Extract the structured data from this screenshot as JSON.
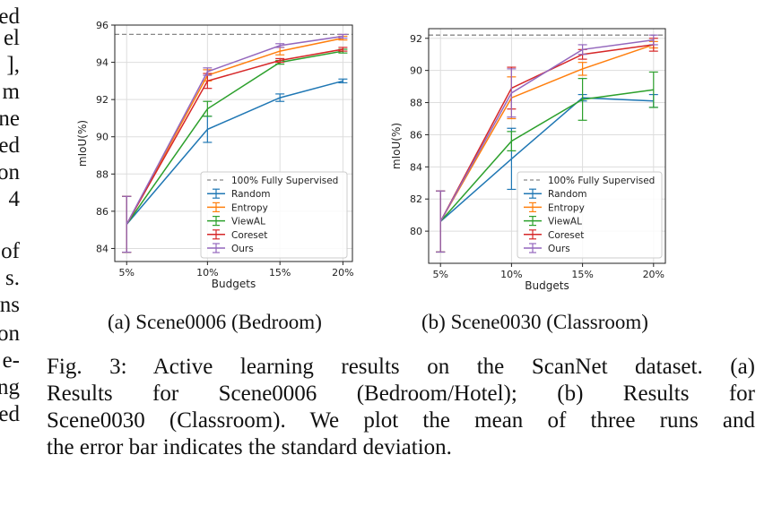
{
  "left_margin_fragments": [
    "ed",
    "el",
    "],",
    "m",
    "ne",
    "ed",
    "on",
    "4",
    "of",
    "s.",
    "ns",
    "on",
    "e-",
    "ng",
    "ed"
  ],
  "legend_labels": {
    "fully_supervised": "100% Fully Supervised",
    "random": "Random",
    "entropy": "Entropy",
    "viewal": "ViewAL",
    "coreset": "Coreset",
    "ours": "Ours"
  },
  "colors": {
    "random": "#1f77b4",
    "entropy": "#ff7f0e",
    "viewal": "#2ca02c",
    "coreset": "#d62728",
    "ours": "#9467bd",
    "fully_supervised": "#888888"
  },
  "subcaption_a": "(a) Scene0006 (Bedroom)",
  "subcaption_b": "(b) Scene0030 (Classroom)",
  "caption_lines": [
    "Fig. 3: Active learning results on the ScanNet dataset. (a)",
    "Results for Scene0006 (Bedroom/Hotel); (b) Results for",
    "Scene0030 (Classroom). We plot the mean of three runs and",
    "the error bar indicates the standard deviation."
  ],
  "chart_data": [
    {
      "type": "line",
      "xlabel": "Budgets",
      "ylabel": "mIoU(%)",
      "categories": [
        "5%",
        "10%",
        "15%",
        "20%"
      ],
      "ylim": [
        83.3,
        96.0
      ],
      "yticks": [
        84,
        86,
        88,
        90,
        92,
        94,
        96
      ],
      "grid": true,
      "legend_position": "lower-right",
      "reference_line": {
        "name": "100% Fully Supervised",
        "value": 95.5
      },
      "series": [
        {
          "name": "Random",
          "key": "random",
          "values": [
            85.3,
            90.4,
            92.1,
            93.0
          ],
          "err": [
            1.5,
            0.7,
            0.2,
            0.1
          ]
        },
        {
          "name": "Entropy",
          "key": "entropy",
          "values": [
            85.3,
            93.3,
            94.6,
            95.3
          ],
          "err": [
            1.5,
            0.3,
            0.2,
            0.1
          ]
        },
        {
          "name": "ViewAL",
          "key": "viewal",
          "values": [
            85.3,
            91.5,
            94.0,
            94.6
          ],
          "err": [
            1.5,
            0.4,
            0.1,
            0.1
          ]
        },
        {
          "name": "Coreset",
          "key": "coreset",
          "values": [
            85.3,
            93.0,
            94.1,
            94.7
          ],
          "err": [
            1.5,
            0.4,
            0.1,
            0.1
          ]
        },
        {
          "name": "Ours",
          "key": "ours",
          "values": [
            85.3,
            93.5,
            94.9,
            95.4
          ],
          "err": [
            1.5,
            0.2,
            0.1,
            0.1
          ]
        }
      ]
    },
    {
      "type": "line",
      "xlabel": "Budgets",
      "ylabel": "mIoU(%)",
      "categories": [
        "5%",
        "10%",
        "15%",
        "20%"
      ],
      "ylim": [
        78.0,
        92.6
      ],
      "yticks": [
        80,
        82,
        84,
        86,
        88,
        90,
        92
      ],
      "grid": true,
      "legend_position": "lower-right",
      "reference_line": {
        "name": "100% Fully Supervised",
        "value": 92.2
      },
      "series": [
        {
          "name": "Random",
          "key": "random",
          "values": [
            80.6,
            84.5,
            88.3,
            88.1
          ],
          "err": [
            1.9,
            1.9,
            0.2,
            0.4
          ]
        },
        {
          "name": "Entropy",
          "key": "entropy",
          "values": [
            80.6,
            88.3,
            90.1,
            91.6
          ],
          "err": [
            1.9,
            1.3,
            0.4,
            0.2
          ]
        },
        {
          "name": "ViewAL",
          "key": "viewal",
          "values": [
            80.6,
            85.6,
            88.2,
            88.8
          ],
          "err": [
            1.9,
            0.6,
            1.3,
            1.1
          ]
        },
        {
          "name": "Coreset",
          "key": "coreset",
          "values": [
            80.6,
            88.9,
            91.0,
            91.6
          ],
          "err": [
            1.9,
            1.3,
            0.3,
            0.4
          ]
        },
        {
          "name": "Ours",
          "key": "ours",
          "values": [
            80.6,
            88.6,
            91.3,
            91.9
          ],
          "err": [
            1.9,
            1.5,
            0.3,
            0.3
          ]
        }
      ]
    }
  ]
}
